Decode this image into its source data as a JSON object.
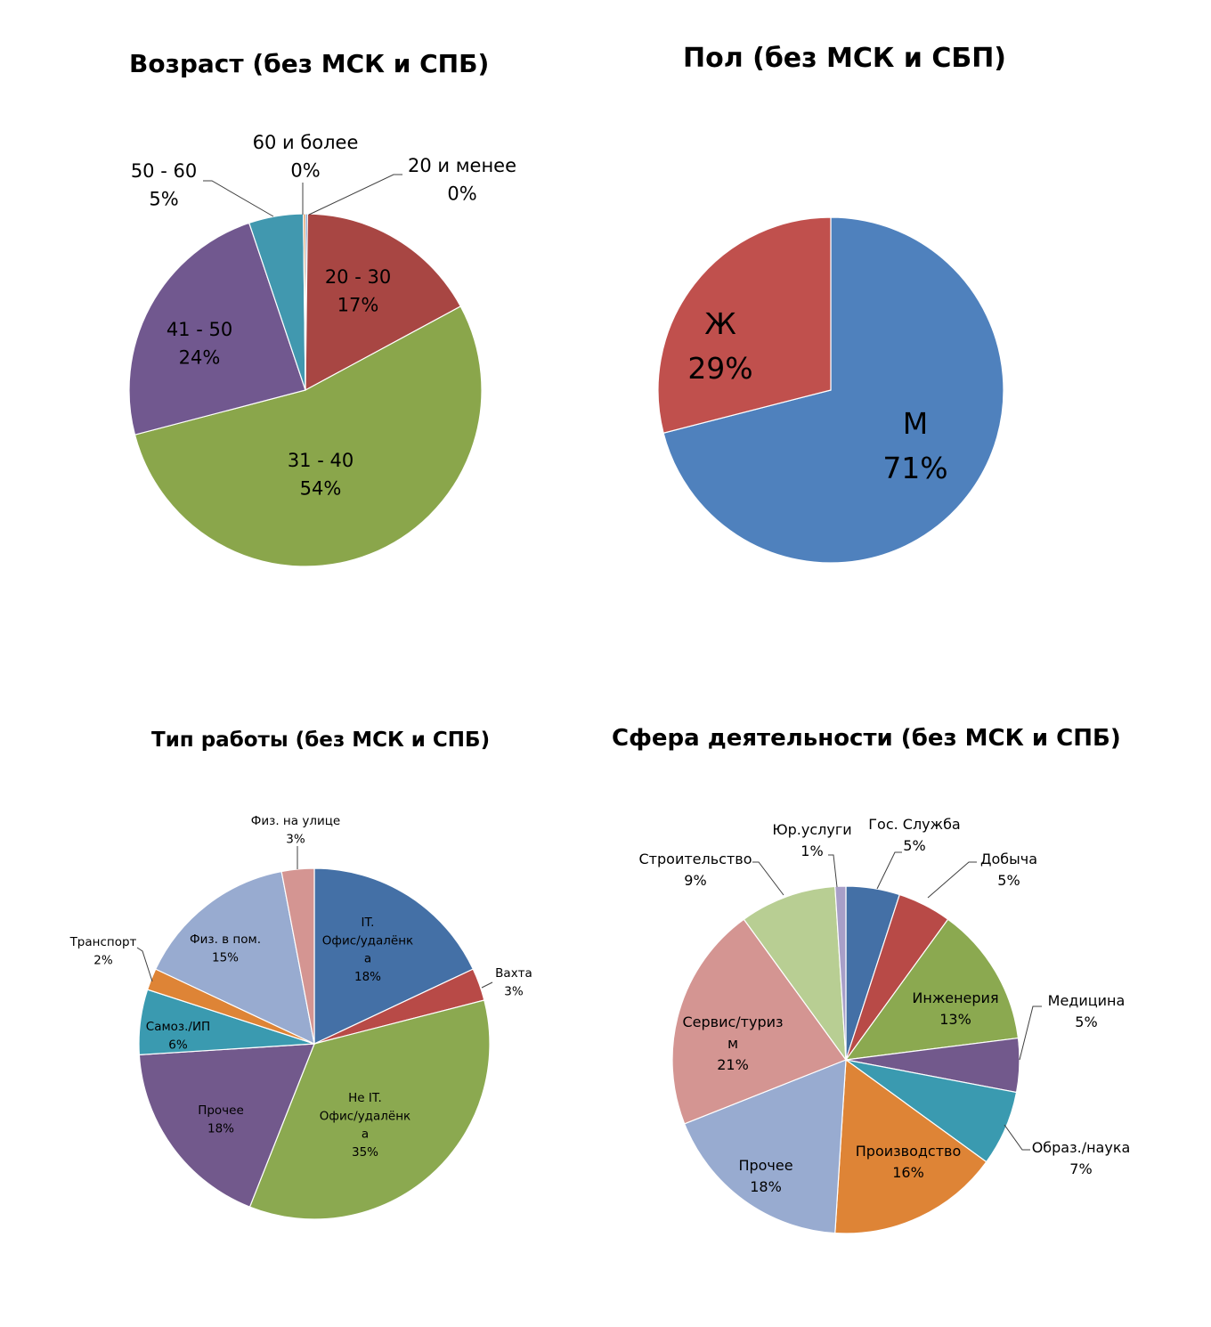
{
  "chart_data": [
    {
      "id": "age",
      "type": "pie",
      "title": "Возраст (без МСК и СПБ)",
      "slices": [
        {
          "label": "20 и менее",
          "value": 0,
          "pct_label": "0%",
          "color": "#4F81BD"
        },
        {
          "label": "20 - 30",
          "value": 17,
          "pct_label": "17%",
          "color": "#A84643"
        },
        {
          "label": "31 - 40",
          "value": 54,
          "pct_label": "54%",
          "color": "#8AA64B"
        },
        {
          "label": "41 - 50",
          "value": 24,
          "pct_label": "24%",
          "color": "#71588F"
        },
        {
          "label": "50 - 60",
          "value": 5,
          "pct_label": "5%",
          "color": "#4198AF"
        },
        {
          "label": "60 и более",
          "value": 0,
          "pct_label": "0%",
          "color": "#DB843D"
        }
      ]
    },
    {
      "id": "gender",
      "type": "pie",
      "title": "Пол (без МСК и СБП)",
      "slices": [
        {
          "label": "М",
          "value": 71,
          "pct_label": "71%",
          "color": "#4F81BD"
        },
        {
          "label": "Ж",
          "value": 29,
          "pct_label": "29%",
          "color": "#C0504D"
        }
      ]
    },
    {
      "id": "work_type",
      "type": "pie",
      "title": "Тип работы (без МСК и СПБ)",
      "slices": [
        {
          "label": "IT. Офис/удалёнка",
          "value": 18,
          "pct_label": "18%",
          "color": "#4470A6"
        },
        {
          "label": "Вахта",
          "value": 3,
          "pct_label": "3%",
          "color": "#B84A47"
        },
        {
          "label": "Не IT. Офис/удалёнка",
          "value": 35,
          "pct_label": "35%",
          "color": "#8BA950"
        },
        {
          "label": "Прочее",
          "value": 18,
          "pct_label": "18%",
          "color": "#72598C"
        },
        {
          "label": "Самоз./ИП",
          "value": 6,
          "pct_label": "6%",
          "color": "#3A9AB0"
        },
        {
          "label": "Транспорт",
          "value": 2,
          "pct_label": "2%",
          "color": "#DE8436"
        },
        {
          "label": "Физ. в пом.",
          "value": 15,
          "pct_label": "15%",
          "color": "#98ABD0"
        },
        {
          "label": "Физ. на улице",
          "value": 3,
          "pct_label": "3%",
          "color": "#D49592"
        }
      ]
    },
    {
      "id": "sphere",
      "type": "pie",
      "title": "Сфера деятельности (без МСК и СПБ)",
      "slices": [
        {
          "label": "Гос. Служба",
          "value": 5,
          "pct_label": "5%",
          "color": "#4470A6"
        },
        {
          "label": "Добыча",
          "value": 5,
          "pct_label": "5%",
          "color": "#B84A47"
        },
        {
          "label": "Инженерия",
          "value": 13,
          "pct_label": "13%",
          "color": "#8BA950"
        },
        {
          "label": "Медицина",
          "value": 5,
          "pct_label": "5%",
          "color": "#72598C"
        },
        {
          "label": "Образ./наука",
          "value": 7,
          "pct_label": "7%",
          "color": "#3A9AB0"
        },
        {
          "label": "Производство",
          "value": 16,
          "pct_label": "16%",
          "color": "#DE8436"
        },
        {
          "label": "Прочее",
          "value": 18,
          "pct_label": "18%",
          "color": "#98ABD0"
        },
        {
          "label": "Сервис/туризм",
          "value": 21,
          "pct_label": "21%",
          "color": "#D49592"
        },
        {
          "label": "Строительство",
          "value": 9,
          "pct_label": "9%",
          "color": "#B8CE93"
        },
        {
          "label": "Юр.услуги",
          "value": 1,
          "pct_label": "1%",
          "color": "#A89FC8"
        }
      ]
    }
  ]
}
